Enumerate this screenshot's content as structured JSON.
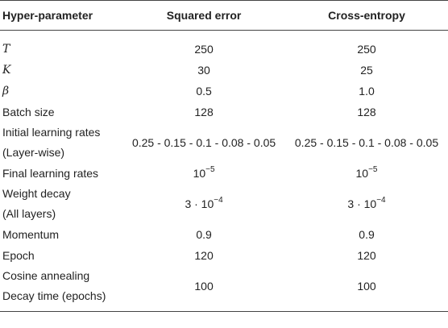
{
  "table": {
    "headers": [
      "Hyper-parameter",
      "Squared error",
      "Cross-entropy"
    ],
    "rows": [
      {
        "param": "T",
        "italic": true,
        "squared_error": "250",
        "cross_entropy": "250"
      },
      {
        "param": "K",
        "italic": true,
        "squared_error": "30",
        "cross_entropy": "25"
      },
      {
        "param": "β",
        "italic": true,
        "squared_error": "0.5",
        "cross_entropy": "1.0"
      },
      {
        "param": "Batch size",
        "squared_error": "128",
        "cross_entropy": "128"
      },
      {
        "param_line1": "Initial learning rates",
        "param_line2": "(Layer-wise)",
        "squared_error": "0.25 - 0.15 - 0.1 - 0.08 - 0.05",
        "cross_entropy": "0.25 - 0.15 - 0.1 - 0.08 - 0.05"
      },
      {
        "param": "Final learning rates",
        "squared_error_base": "10",
        "squared_error_exp": "−5",
        "cross_entropy_base": "10",
        "cross_entropy_exp": "−5"
      },
      {
        "param_line1": "Weight decay",
        "param_line2": "(All layers)",
        "squared_error_base": "3 · 10",
        "squared_error_exp": "−4",
        "cross_entropy_base": "3 · 10",
        "cross_entropy_exp": "−4"
      },
      {
        "param": "Momentum",
        "squared_error": "0.9",
        "cross_entropy": "0.9"
      },
      {
        "param": "Epoch",
        "squared_error": "120",
        "cross_entropy": "120"
      },
      {
        "param_line1": "Cosine annealing",
        "param_line2": "Decay time (epochs)",
        "squared_error": "100",
        "cross_entropy": "100"
      }
    ]
  }
}
